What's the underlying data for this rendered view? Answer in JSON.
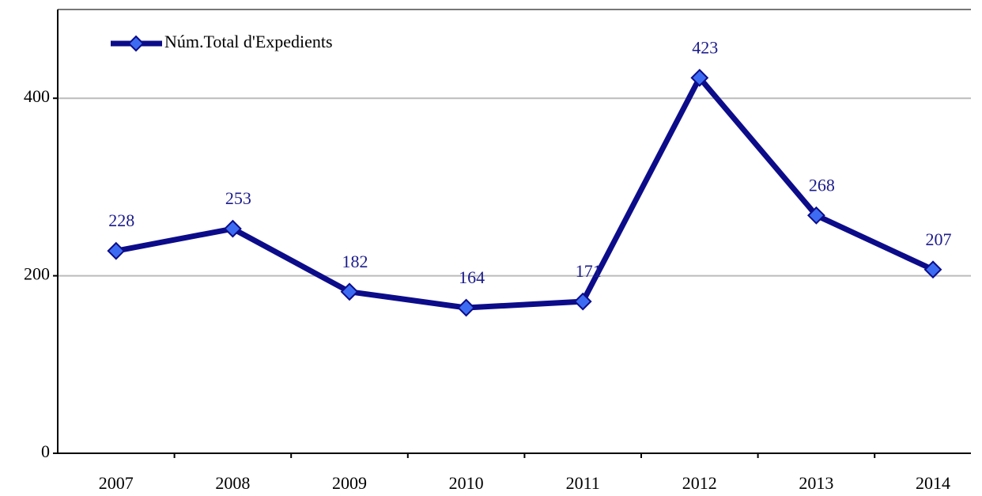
{
  "chart_data": {
    "type": "line",
    "categories": [
      "2007",
      "2008",
      "2009",
      "2010",
      "2011",
      "2012",
      "2013",
      "2014"
    ],
    "series": [
      {
        "name": "Núm.Total d'Expedients",
        "color": "#0c0c8a",
        "marker_color": "#3d6cf2",
        "values": [
          228,
          253,
          182,
          164,
          171,
          423,
          268,
          207
        ]
      }
    ],
    "ylim": [
      0,
      500
    ],
    "yticks": [
      0,
      200,
      400
    ],
    "grid": true,
    "legend": "upper left"
  }
}
